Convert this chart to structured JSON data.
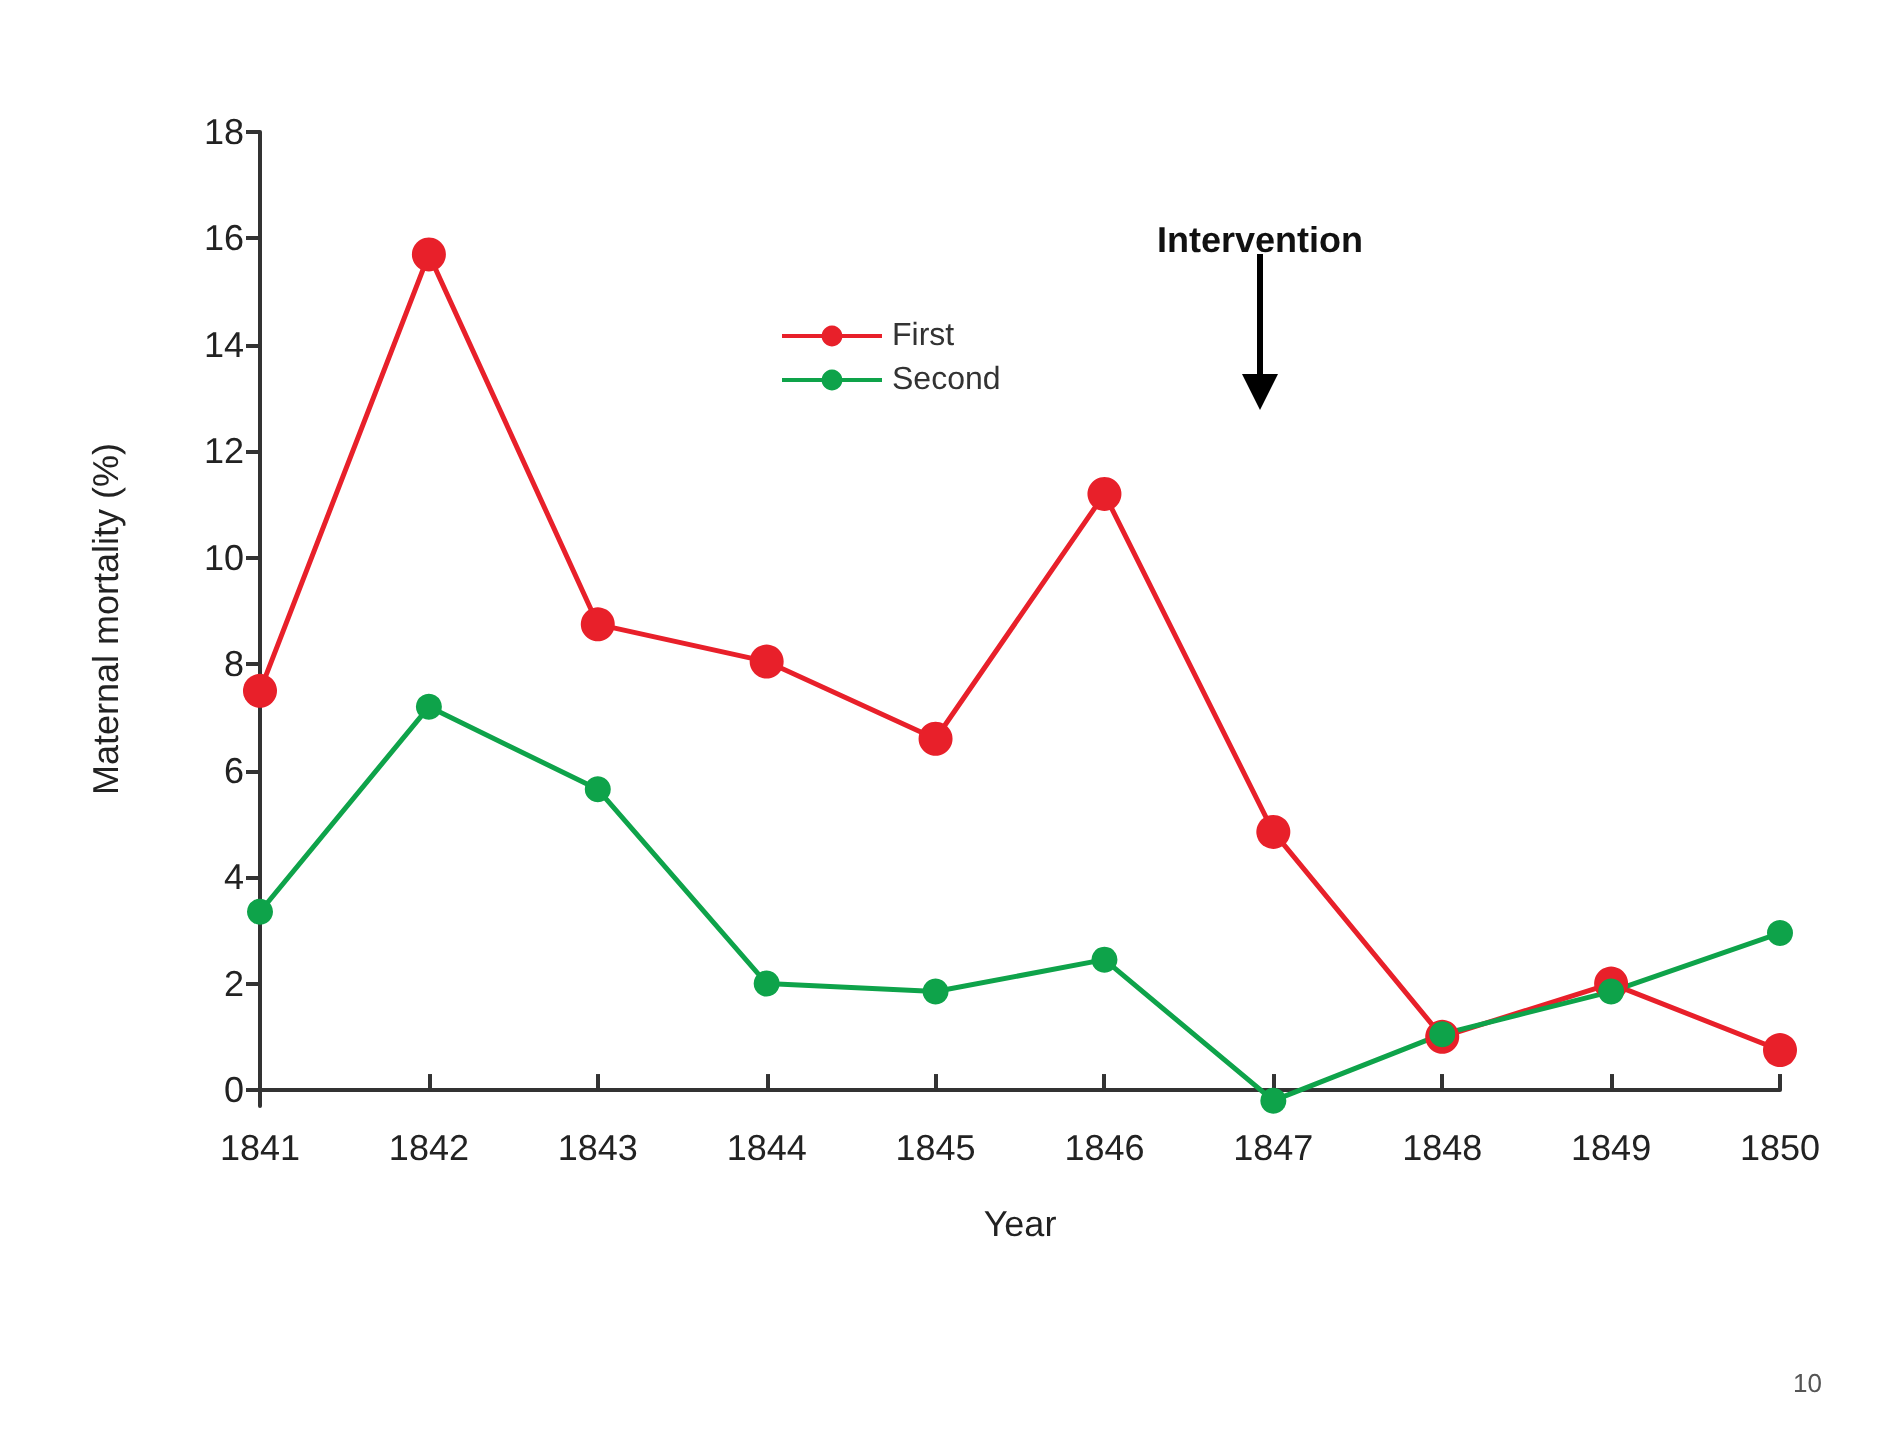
{
  "chart_data": {
    "type": "line",
    "xlabel": "Year",
    "ylabel": "Maternal mortality (%)",
    "categories": [
      "1841",
      "1842",
      "1843",
      "1844",
      "1845",
      "1846",
      "1847",
      "1848",
      "1849",
      "1850"
    ],
    "series": [
      {
        "name": "First",
        "color": "#e8202a",
        "values": [
          7.5,
          15.7,
          8.75,
          8.05,
          6.6,
          11.2,
          4.85,
          1.0,
          2.0,
          0.75
        ]
      },
      {
        "name": "Second",
        "color": "#0ea34a",
        "values": [
          3.35,
          7.2,
          5.65,
          2.0,
          1.85,
          2.45,
          -0.2,
          1.05,
          1.85,
          2.95
        ]
      }
    ],
    "ylim": [
      -0.3,
      18
    ],
    "yticks": [
      0,
      2,
      4,
      6,
      8,
      10,
      12,
      14,
      16,
      18
    ],
    "grid": false,
    "legend": "top",
    "marker": "circle",
    "line_style": "solid",
    "annotations": [
      "Intervention",
      "10"
    ]
  }
}
